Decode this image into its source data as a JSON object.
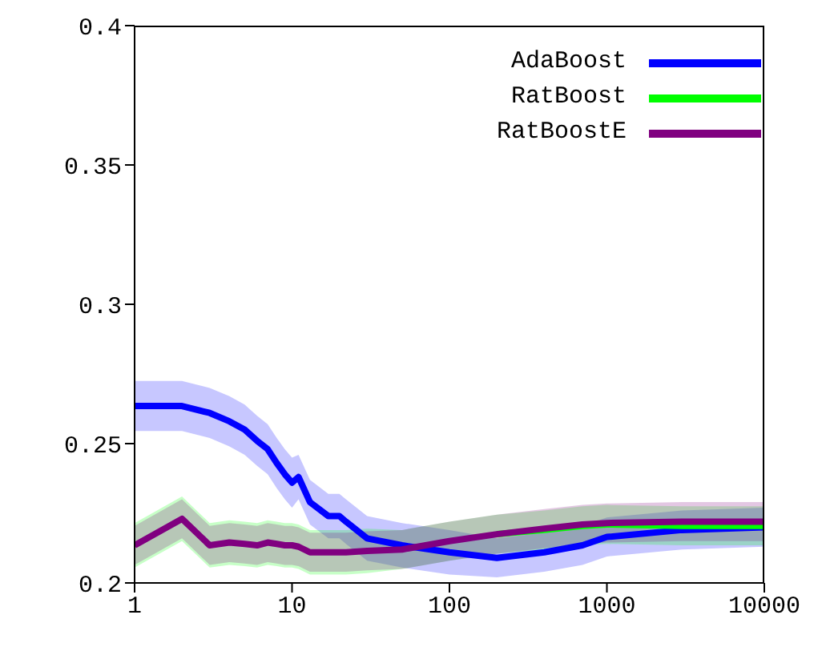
{
  "chart_data": {
    "type": "line",
    "x": [
      1,
      2,
      3,
      4,
      5,
      6,
      7,
      8,
      9,
      10,
      11,
      13,
      17,
      20,
      22,
      30,
      50,
      100,
      200,
      400,
      700,
      1000,
      3000,
      10000
    ],
    "series": [
      {
        "name": "AdaBoost",
        "color": "#0000ff",
        "values": [
          0.2635,
          0.2635,
          0.261,
          0.258,
          0.255,
          0.251,
          0.248,
          0.243,
          0.239,
          0.236,
          0.238,
          0.229,
          0.224,
          0.224,
          0.222,
          0.216,
          0.2135,
          0.211,
          0.209,
          0.211,
          0.2135,
          0.2165,
          0.219,
          0.22
        ],
        "lower": [
          0.2545,
          0.2545,
          0.252,
          0.249,
          0.246,
          0.242,
          0.239,
          0.234,
          0.23,
          0.227,
          0.23,
          0.221,
          0.216,
          0.216,
          0.214,
          0.208,
          0.2055,
          0.203,
          0.202,
          0.204,
          0.2065,
          0.2095,
          0.212,
          0.213
        ],
        "upper": [
          0.2725,
          0.2725,
          0.27,
          0.267,
          0.264,
          0.26,
          0.257,
          0.252,
          0.248,
          0.245,
          0.246,
          0.237,
          0.232,
          0.232,
          0.23,
          0.224,
          0.2215,
          0.219,
          0.216,
          0.218,
          0.2205,
          0.2235,
          0.226,
          0.227
        ]
      },
      {
        "name": "RatBoost",
        "color": "#00ff00",
        "values": [
          null,
          null,
          null,
          null,
          null,
          null,
          null,
          null,
          null,
          null,
          null,
          null,
          null,
          null,
          null,
          null,
          null,
          null,
          0.2175,
          0.219,
          0.2205,
          0.221,
          0.2205,
          0.2205
        ],
        "lower": [
          0.2055,
          0.215,
          0.2055,
          0.2065,
          0.206,
          0.2055,
          0.2065,
          0.206,
          0.2055,
          0.2055,
          0.205,
          0.203,
          0.203,
          0.203,
          0.203,
          0.2035,
          0.205,
          0.208,
          0.2105,
          0.212,
          0.2135,
          0.214,
          0.2135,
          0.2135
        ],
        "upper": [
          0.2215,
          0.231,
          0.2215,
          0.2225,
          0.222,
          0.2215,
          0.2225,
          0.222,
          0.2215,
          0.2215,
          0.221,
          0.219,
          0.219,
          0.219,
          0.219,
          0.2195,
          0.219,
          0.222,
          0.2245,
          0.226,
          0.2275,
          0.228,
          0.2275,
          0.2275
        ]
      },
      {
        "name": "RatBoostE",
        "color": "#800080",
        "values": [
          0.2135,
          0.223,
          0.2135,
          0.2145,
          0.214,
          0.2135,
          0.2145,
          0.214,
          0.2135,
          0.2135,
          0.213,
          0.211,
          0.211,
          0.211,
          0.211,
          0.2115,
          0.212,
          0.215,
          0.2175,
          0.2195,
          0.221,
          0.2215,
          0.222,
          0.222
        ],
        "lower": [
          0.2065,
          0.216,
          0.2065,
          0.2075,
          0.207,
          0.2065,
          0.2075,
          0.207,
          0.2065,
          0.2065,
          0.206,
          0.204,
          0.204,
          0.204,
          0.204,
          0.2045,
          0.205,
          0.208,
          0.2105,
          0.2125,
          0.214,
          0.2145,
          0.215,
          0.215
        ],
        "upper": [
          0.2205,
          0.23,
          0.2205,
          0.2215,
          0.221,
          0.2205,
          0.2215,
          0.221,
          0.2205,
          0.2205,
          0.22,
          0.218,
          0.218,
          0.218,
          0.218,
          0.2185,
          0.219,
          0.222,
          0.2245,
          0.2265,
          0.228,
          0.2285,
          0.229,
          0.229
        ]
      }
    ],
    "log": "x",
    "xlim": [
      1,
      10000
    ],
    "xticks": [
      1,
      10,
      100,
      1000,
      10000
    ],
    "ylim": [
      0.2,
      0.4
    ],
    "yticks": [
      0.2,
      0.25,
      0.3,
      0.35,
      0.4
    ],
    "legend": "top right",
    "marker": "none",
    "line_style": "solid"
  }
}
